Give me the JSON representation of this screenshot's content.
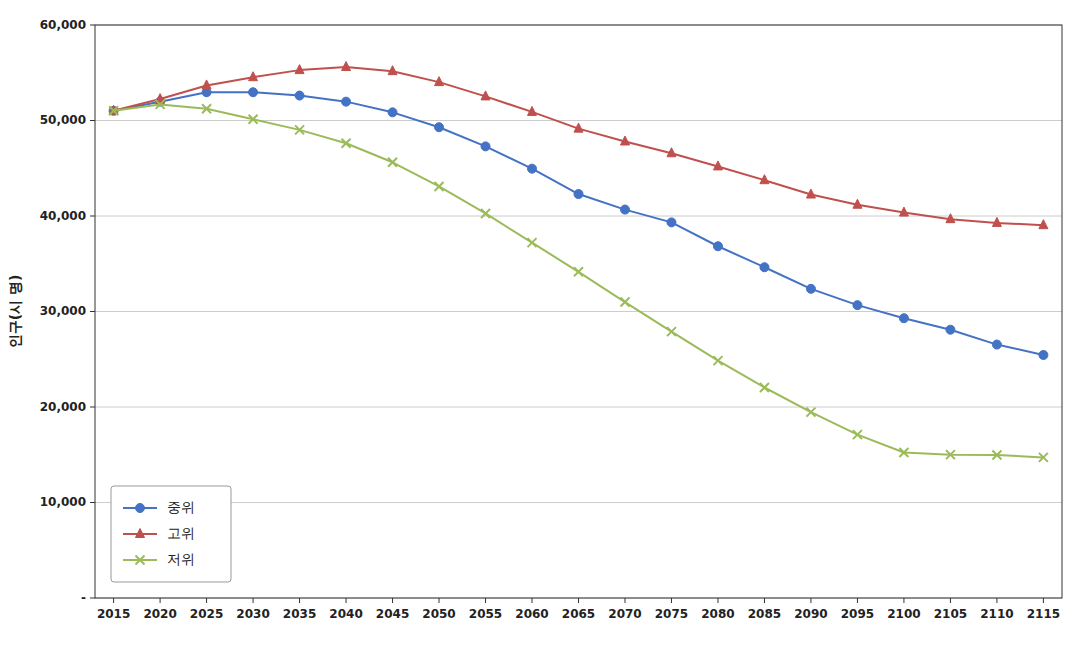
{
  "chart_data": {
    "type": "line",
    "y_label": "인구(시 명)",
    "x": [
      2015,
      2020,
      2025,
      2030,
      2035,
      2040,
      2045,
      2050,
      2055,
      2060,
      2065,
      2070,
      2075,
      2080,
      2085,
      2090,
      2095,
      2100,
      2105,
      2110,
      2115
    ],
    "series": [
      {
        "name": "중위",
        "color": "#4472C4",
        "marker": "circle",
        "values": [
          51014,
          51974,
          52961,
          52960,
          52611,
          51974,
          50854,
          49295,
          47290,
          44956,
          42298,
          40671,
          39330,
          36832,
          34635,
          32374,
          30666,
          29298,
          28094,
          26536,
          25448
        ]
      },
      {
        "name": "고위",
        "color": "#C0504D",
        "marker": "triangle",
        "values": [
          51014,
          52244,
          53671,
          54533,
          55276,
          55601,
          55166,
          54018,
          52522,
          50898,
          49148,
          47800,
          46573,
          45191,
          43750,
          42247,
          41180,
          40357,
          39669,
          39277,
          39039
        ]
      },
      {
        "name": "저위",
        "color": "#9BBB59",
        "marker": "x",
        "values": [
          51014,
          51684,
          51234,
          50136,
          49016,
          47621,
          45625,
          43091,
          40269,
          37209,
          34158,
          30990,
          27889,
          24854,
          22041,
          19465,
          17108,
          15233,
          15011,
          14982,
          14721
        ]
      }
    ],
    "xlim": [
      2013,
      2117
    ],
    "xticks": [
      2015,
      2020,
      2025,
      2030,
      2035,
      2040,
      2045,
      2050,
      2055,
      2060,
      2065,
      2070,
      2075,
      2080,
      2085,
      2090,
      2095,
      2100,
      2105,
      2110,
      2115
    ],
    "ylim": [
      0,
      60000
    ],
    "yticks": [
      {
        "value": 0,
        "label": "-"
      },
      {
        "value": 10000,
        "label": "10,000"
      },
      {
        "value": 20000,
        "label": "20,000"
      },
      {
        "value": 30000,
        "label": "30,000"
      },
      {
        "value": 40000,
        "label": "40,000"
      },
      {
        "value": 50000,
        "label": "50,000"
      },
      {
        "value": 60000,
        "label": "60,000"
      }
    ],
    "grid": true,
    "legend": "lower left"
  }
}
